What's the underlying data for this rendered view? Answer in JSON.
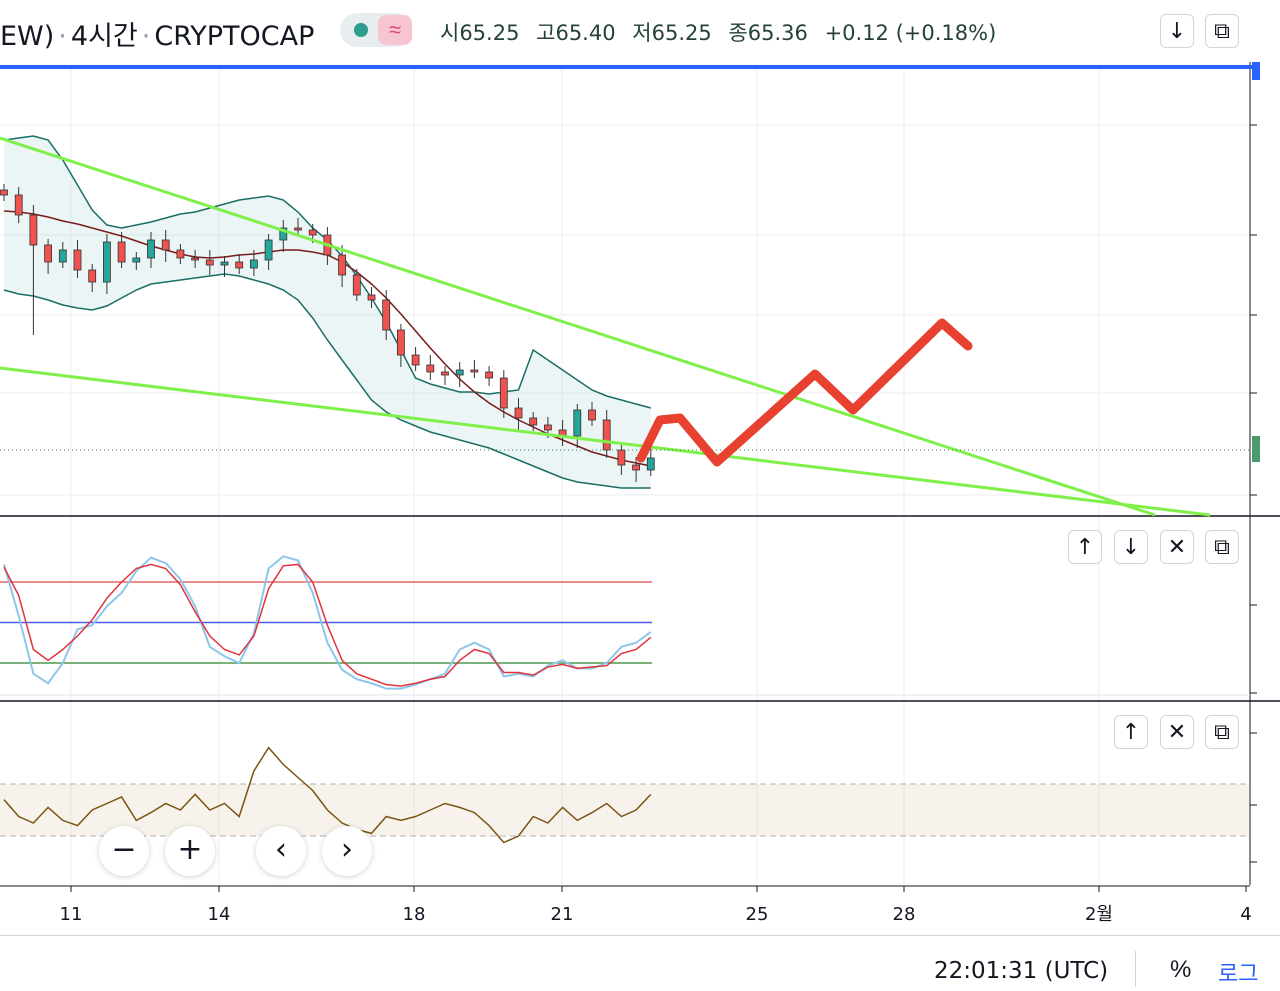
{
  "header": {
    "symbol_left": "EW)",
    "interval": "4시간",
    "exchange": "CRYPTOCAP",
    "wave_icon": "≈",
    "ohlc": {
      "open": "시65.25",
      "high": "고65.40",
      "low": "저65.25",
      "close": "종65.36",
      "change": "+0.12 (+0.18%)"
    },
    "buttons": [
      "↓",
      "⧉"
    ]
  },
  "colors": {
    "candle_up": "#26a69a",
    "candle_down": "#ef5350",
    "trendline": "#7ff04a",
    "forecast": "#e8412f",
    "bollinger": "#1a6e67",
    "basis": "#7a1b1b",
    "stoch_k": "#8ec6ea",
    "stoch_d": "#e0333d",
    "rsi": "#7a5410",
    "accent": "#2962ff"
  },
  "panes": {
    "stoch_buttons": [
      "↑",
      "↓",
      "✕",
      "⧉"
    ],
    "rsi_buttons": [
      "↑",
      "✕",
      "⧉"
    ]
  },
  "chart_data": [
    {
      "type": "candlestick",
      "title": "",
      "x_tick_labels": [
        "11",
        "14",
        "18",
        "21",
        "25",
        "28",
        "2월",
        "4"
      ],
      "candles": [],
      "overlays": [
        "Bollinger Bands",
        "basis line",
        "two converging trendlines (falling wedge)",
        "hand-drawn forecast zig-zag"
      ],
      "current_price_line": true
    },
    {
      "type": "line",
      "title": "",
      "series": [
        {
          "values": [
            0.93,
            0.55,
            0.12,
            0.05,
            0.2,
            0.45,
            0.48,
            0.62,
            0.72,
            0.88,
            0.98,
            0.94,
            0.82,
            0.62,
            0.32,
            0.25,
            0.2,
            0.42,
            0.9,
            0.99,
            0.96,
            0.72,
            0.35,
            0.15,
            0.08,
            0.05,
            0.01,
            0.01,
            0.04,
            0.08,
            0.12,
            0.3,
            0.35,
            0.3,
            0.1,
            0.12,
            0.1,
            0.18,
            0.22,
            0.16,
            0.16,
            0.2,
            0.32,
            0.35,
            0.43
          ]
        },
        {
          "values": [
            0.91,
            0.7,
            0.3,
            0.22,
            0.3,
            0.4,
            0.52,
            0.68,
            0.8,
            0.9,
            0.93,
            0.9,
            0.78,
            0.58,
            0.4,
            0.3,
            0.26,
            0.4,
            0.75,
            0.92,
            0.93,
            0.8,
            0.48,
            0.22,
            0.12,
            0.08,
            0.04,
            0.03,
            0.05,
            0.08,
            0.1,
            0.22,
            0.3,
            0.27,
            0.13,
            0.13,
            0.11,
            0.17,
            0.19,
            0.16,
            0.17,
            0.18,
            0.27,
            0.3,
            0.39
          ]
        }
      ],
      "levels": [
        0.8,
        0.5,
        0.2
      ],
      "ylim": [
        0,
        1
      ]
    },
    {
      "type": "line",
      "title": "",
      "series": [
        {
          "values": [
            0.58,
            0.45,
            0.4,
            0.52,
            0.42,
            0.38,
            0.5,
            0.55,
            0.6,
            0.42,
            0.48,
            0.55,
            0.5,
            0.62,
            0.5,
            0.55,
            0.45,
            0.8,
            0.98,
            0.85,
            0.75,
            0.65,
            0.5,
            0.4,
            0.35,
            0.32,
            0.45,
            0.42,
            0.45,
            0.5,
            0.55,
            0.52,
            0.48,
            0.38,
            0.25,
            0.3,
            0.45,
            0.4,
            0.52,
            0.42,
            0.48,
            0.55,
            0.45,
            0.5,
            0.62
          ]
        }
      ],
      "band": [
        0.3,
        0.7
      ],
      "ylim": [
        0,
        1
      ]
    }
  ],
  "nav": {
    "zoom_out": "−",
    "zoom_in": "+",
    "scroll_left": "‹",
    "scroll_right": "›"
  },
  "footer": {
    "clock": "22:01:31 (UTC)",
    "percent": "%",
    "log": "로그"
  }
}
